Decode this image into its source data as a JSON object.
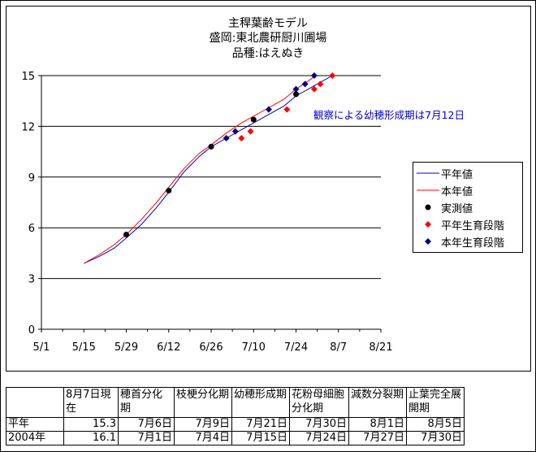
{
  "title_lines": [
    "主稈葉齢モデル",
    "盛岡:東北農研厨川圃場",
    "品種:はえぬき"
  ],
  "annotation": "観察による幼穂形成期は7月12日",
  "legend": {
    "normal_line": "平年値",
    "current_line": "本年値",
    "observed": "実測値",
    "normal_stage": "平年生育段階",
    "current_stage": "本年生育段階"
  },
  "colors": {
    "normal": "#0000cc",
    "current": "#ff0000",
    "observed": "#000000",
    "normal_stage": "#ff0000",
    "current_stage": "#000080"
  },
  "chart_data": {
    "type": "line",
    "title": "主稈葉齢モデル",
    "subtitle": [
      "盛岡:東北農研厨川圃場",
      "品種:はえぬき"
    ],
    "x_ticks": [
      "5/1",
      "5/15",
      "5/29",
      "6/12",
      "6/26",
      "7/10",
      "7/24",
      "8/7",
      "8/21"
    ],
    "y_ticks": [
      "0",
      "3",
      "6",
      "9",
      "12",
      "15"
    ],
    "ylim": [
      0,
      15
    ],
    "xlim": [
      "5/1",
      "8/21"
    ],
    "grid": "horizontal",
    "legend_position": "right",
    "series": [
      {
        "name": "平年値",
        "style": "line",
        "x": [
          "5/15",
          "5/20",
          "5/25",
          "5/29",
          "6/3",
          "6/8",
          "6/12",
          "6/17",
          "6/22",
          "6/26",
          "7/1",
          "7/6",
          "7/10",
          "7/15",
          "7/20",
          "7/24",
          "7/29",
          "8/2",
          "8/5"
        ],
        "y": [
          3.9,
          4.3,
          4.8,
          5.4,
          6.2,
          7.2,
          8.1,
          9.3,
          10.2,
          10.8,
          11.3,
          11.8,
          12.2,
          12.7,
          13.2,
          13.8,
          14.3,
          14.7,
          15.0
        ]
      },
      {
        "name": "本年値",
        "style": "line",
        "x": [
          "5/15",
          "5/20",
          "5/25",
          "5/29",
          "6/3",
          "6/8",
          "6/12",
          "6/17",
          "6/22",
          "6/26",
          "7/1",
          "7/6",
          "7/10",
          "7/15",
          "7/20",
          "7/24",
          "7/29",
          "7/30"
        ],
        "y": [
          3.9,
          4.4,
          5.0,
          5.6,
          6.5,
          7.5,
          8.4,
          9.5,
          10.4,
          10.9,
          11.6,
          12.2,
          12.6,
          13.1,
          13.6,
          14.2,
          14.8,
          15.0
        ]
      },
      {
        "name": "実測値",
        "style": "dot",
        "x": [
          "5/29",
          "6/12",
          "6/26",
          "7/10",
          "7/24"
        ],
        "y": [
          5.6,
          8.2,
          10.8,
          12.4,
          13.9
        ]
      },
      {
        "name": "平年生育段階",
        "style": "diamond",
        "x": [
          "7/6",
          "7/9",
          "7/21",
          "7/30",
          "8/1",
          "8/5"
        ],
        "y": [
          11.3,
          11.7,
          13.0,
          14.2,
          14.5,
          15.0
        ]
      },
      {
        "name": "本年生育段階",
        "style": "diamond",
        "x": [
          "7/1",
          "7/4",
          "7/15",
          "7/24",
          "7/27",
          "7/30"
        ],
        "y": [
          11.3,
          11.7,
          13.0,
          14.2,
          14.5,
          15.0
        ]
      }
    ]
  },
  "table": {
    "headers": [
      "",
      "8月7日現在",
      "穂首分化期",
      "枝梗分化期",
      "幼穂形成期",
      "花粉母細胞分化期",
      "減数分裂期",
      "止葉完全展開期"
    ],
    "rows": [
      [
        "平年",
        "15.3",
        "7月6日",
        "7月9日",
        "7月21日",
        "7月30日",
        "8月1日",
        "8月5日"
      ],
      [
        "2004年",
        "16.1",
        "7月1日",
        "7月4日",
        "7月15日",
        "7月24日",
        "7月27日",
        "7月30日"
      ]
    ]
  }
}
